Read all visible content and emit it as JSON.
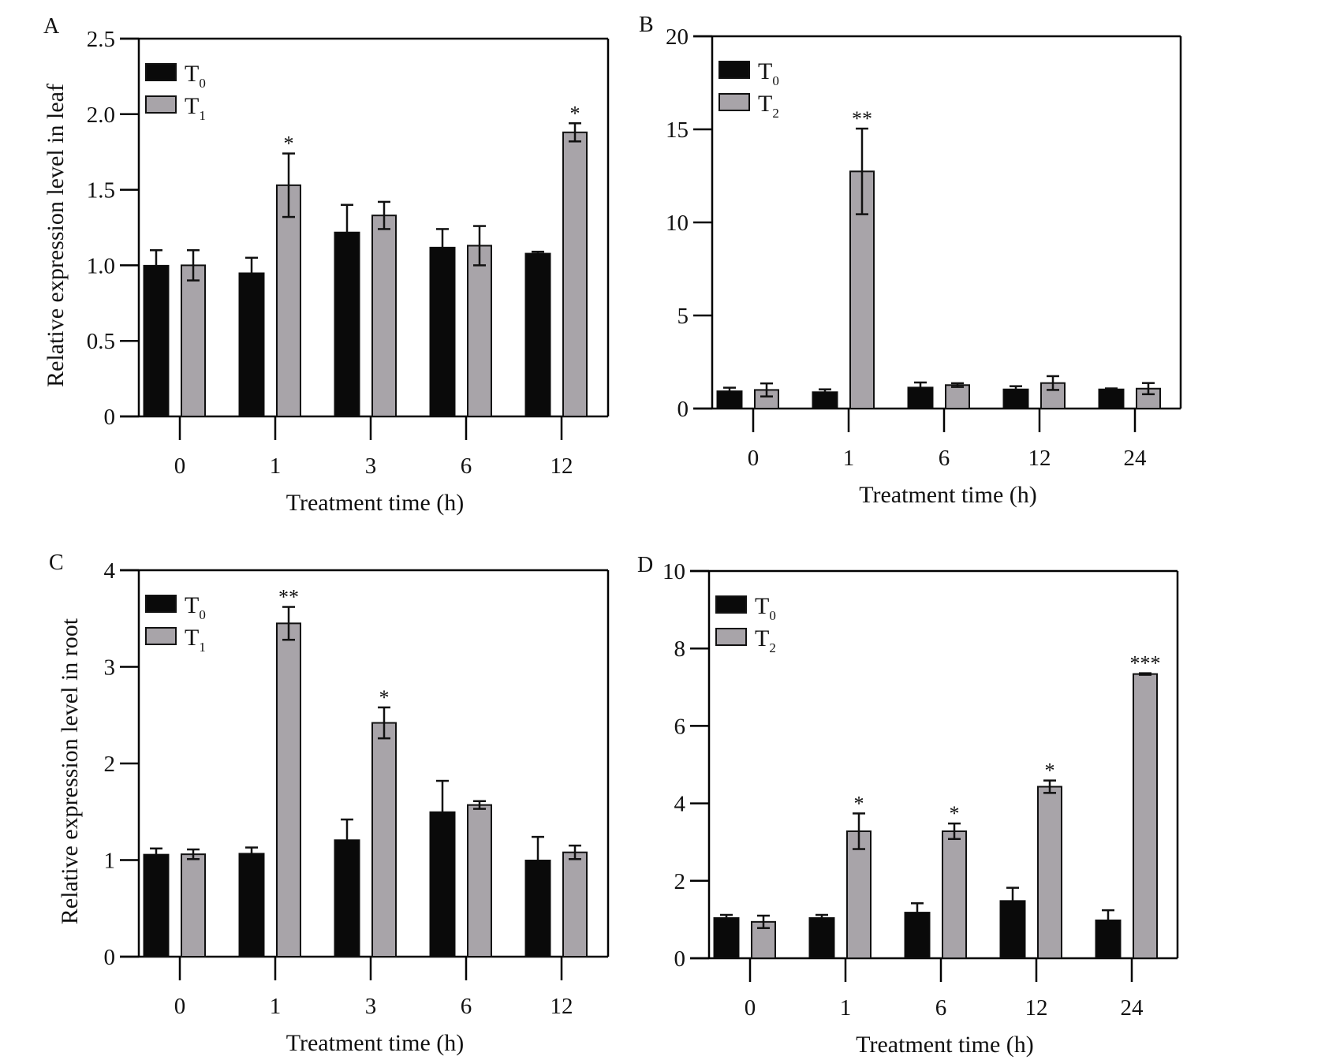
{
  "figure": {
    "series_colors": {
      "T0": "#0a0a0a",
      "treated": "#a8a4a9"
    }
  },
  "chart_data": [
    {
      "panel": "A",
      "type": "bar",
      "title": "",
      "xlabel": "Treatment time (h)",
      "ylabel": "Relative expression level in leaf",
      "categories": [
        "0",
        "1",
        "3",
        "6",
        "12"
      ],
      "ylim": [
        0,
        2.5
      ],
      "yticks": [
        "0",
        "0.5",
        "1.0",
        "1.5",
        "2.0",
        "2.5"
      ],
      "ytick_values": [
        0,
        0.5,
        1.0,
        1.5,
        2.0,
        2.5
      ],
      "legend": {
        "position": "top-left",
        "entries": [
          {
            "base": "T",
            "sub": "0"
          },
          {
            "base": "T",
            "sub": "1"
          }
        ]
      },
      "series": [
        {
          "name": "T0",
          "values": [
            1.0,
            0.95,
            1.22,
            1.12,
            1.08
          ],
          "errors": [
            0.1,
            0.1,
            0.18,
            0.12,
            0.01
          ],
          "sig": [
            "",
            "",
            "",
            "",
            ""
          ]
        },
        {
          "name": "T1",
          "values": [
            1.0,
            1.53,
            1.33,
            1.13,
            1.88
          ],
          "errors": [
            0.1,
            0.21,
            0.09,
            0.13,
            0.06
          ],
          "sig": [
            "",
            "*",
            "",
            "",
            "*"
          ]
        }
      ]
    },
    {
      "panel": "B",
      "type": "bar",
      "title": "",
      "xlabel": "Treatment time (h)",
      "ylabel": "",
      "categories": [
        "0",
        "1",
        "6",
        "12",
        "24"
      ],
      "ylim": [
        0,
        20
      ],
      "yticks": [
        "0",
        "5",
        "10",
        "15",
        "20"
      ],
      "ytick_values": [
        0,
        5,
        10,
        15,
        20
      ],
      "legend": {
        "position": "top-left",
        "entries": [
          {
            "base": "T",
            "sub": "0"
          },
          {
            "base": "T",
            "sub": "2"
          }
        ]
      },
      "series": [
        {
          "name": "T0",
          "values": [
            0.95,
            0.9,
            1.15,
            1.05,
            1.05
          ],
          "errors": [
            0.17,
            0.13,
            0.25,
            0.15,
            0.03
          ],
          "sig": [
            "",
            "",
            "",
            "",
            ""
          ]
        },
        {
          "name": "T2",
          "values": [
            1.0,
            12.74,
            1.26,
            1.37,
            1.07
          ],
          "errors": [
            0.35,
            2.3,
            0.1,
            0.37,
            0.3
          ],
          "sig": [
            "",
            "**",
            "",
            "",
            ""
          ]
        }
      ]
    },
    {
      "panel": "C",
      "type": "bar",
      "title": "",
      "xlabel": "Treatment time (h)",
      "ylabel": "Relative expression level in root",
      "categories": [
        "0",
        "1",
        "3",
        "6",
        "12"
      ],
      "ylim": [
        0,
        4
      ],
      "yticks": [
        "0",
        "1",
        "2",
        "3",
        "4"
      ],
      "ytick_values": [
        0,
        1,
        2,
        3,
        4
      ],
      "legend": {
        "position": "top-left",
        "entries": [
          {
            "base": "T",
            "sub": "0"
          },
          {
            "base": "T",
            "sub": "1"
          }
        ]
      },
      "series": [
        {
          "name": "T0",
          "values": [
            1.06,
            1.07,
            1.21,
            1.5,
            1.0
          ],
          "errors": [
            0.06,
            0.06,
            0.21,
            0.32,
            0.24
          ],
          "sig": [
            "",
            "",
            "",
            "",
            ""
          ]
        },
        {
          "name": "T1",
          "values": [
            1.06,
            3.45,
            2.42,
            1.57,
            1.08
          ],
          "errors": [
            0.05,
            0.17,
            0.16,
            0.04,
            0.07
          ],
          "sig": [
            "",
            "**",
            "*",
            "",
            ""
          ]
        }
      ]
    },
    {
      "panel": "D",
      "type": "bar",
      "title": "",
      "xlabel": "Treatment time (h)",
      "ylabel": "",
      "categories": [
        "0",
        "1",
        "6",
        "12",
        "24"
      ],
      "ylim": [
        0,
        10
      ],
      "yticks": [
        "0",
        "2",
        "4",
        "6",
        "8",
        "10"
      ],
      "ytick_values": [
        0,
        2,
        4,
        6,
        8,
        10
      ],
      "legend": {
        "position": "top-left",
        "entries": [
          {
            "base": "T",
            "sub": "0"
          },
          {
            "base": "T",
            "sub": "2"
          }
        ]
      },
      "series": [
        {
          "name": "T0",
          "values": [
            1.05,
            1.05,
            1.19,
            1.49,
            0.99
          ],
          "errors": [
            0.07,
            0.07,
            0.23,
            0.33,
            0.25
          ],
          "sig": [
            "",
            "",
            "",
            "",
            ""
          ]
        },
        {
          "name": "T2",
          "values": [
            0.94,
            3.28,
            3.28,
            4.43,
            7.34
          ],
          "errors": [
            0.16,
            0.46,
            0.2,
            0.16,
            0.02
          ],
          "sig": [
            "",
            "*",
            "*",
            "*",
            "***"
          ]
        }
      ]
    }
  ]
}
